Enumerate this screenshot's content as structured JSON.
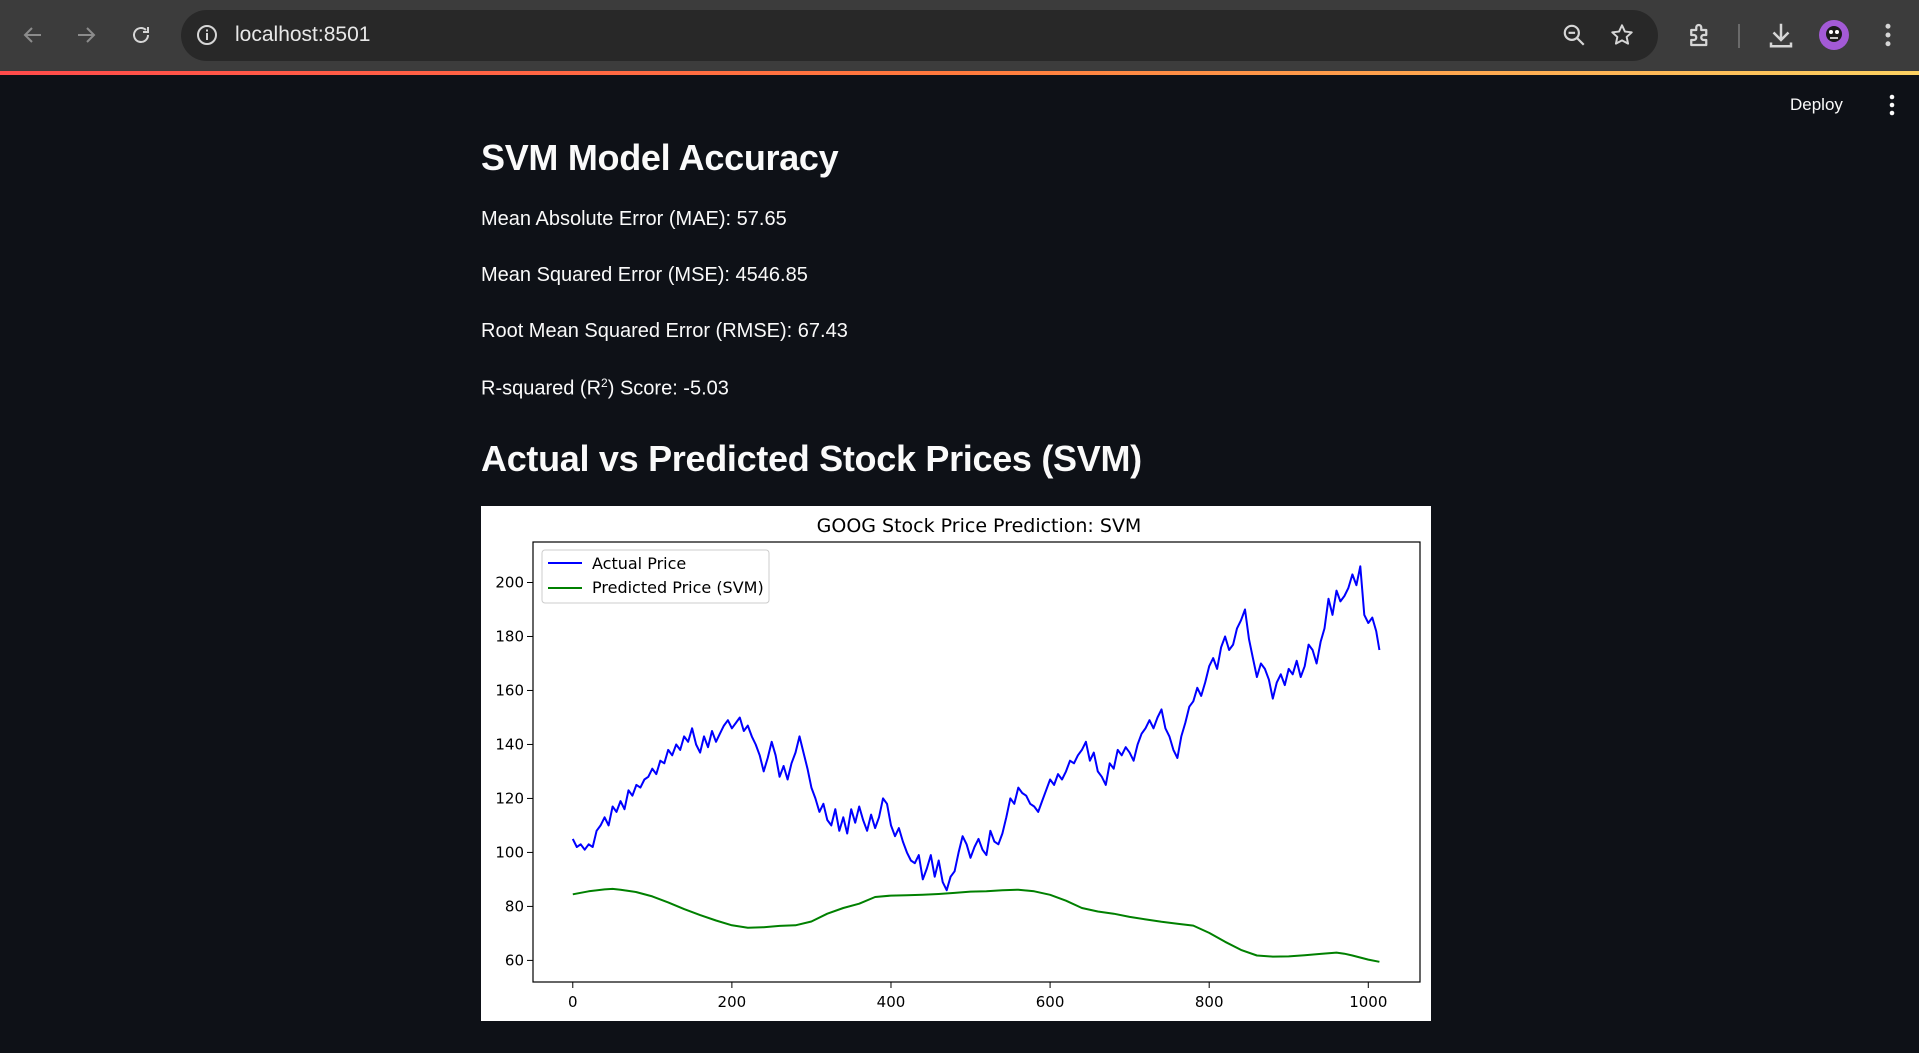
{
  "browser": {
    "url": "localhost:8501",
    "icons": [
      "back-arrow-icon",
      "forward-arrow-icon",
      "reload-icon",
      "info-icon",
      "zoom-icon",
      "star-icon",
      "extensions-icon",
      "download-icon",
      "profile-avatar",
      "kebab-menu-icon"
    ]
  },
  "app_header": {
    "deploy_label": "Deploy"
  },
  "accuracy": {
    "heading": "SVM Model Accuracy",
    "mae": "Mean Absolute Error (MAE): 57.65",
    "mse": "Mean Squared Error (MSE): 4546.85",
    "rmse": "Root Mean Squared Error (RMSE): 67.43",
    "r2_prefix": "R-squared (R",
    "r2_sup": "2",
    "r2_suffix": ") Score: -5.03"
  },
  "chart_section": {
    "heading": "Actual vs Predicted Stock Prices (SVM)"
  },
  "chart_data": {
    "type": "line",
    "title": "GOOG Stock Price Prediction: SVM",
    "xlabel": "",
    "ylabel": "",
    "xlim": [
      -50,
      1065
    ],
    "ylim": [
      52,
      215
    ],
    "xticks": [
      0,
      200,
      400,
      600,
      800,
      1000
    ],
    "yticks": [
      60,
      80,
      100,
      120,
      140,
      160,
      180,
      200
    ],
    "legend_position": "top-left",
    "grid": false,
    "series": [
      {
        "name": "Actual Price",
        "color": "#0000ff",
        "x": [
          0,
          5,
          10,
          15,
          20,
          25,
          30,
          35,
          40,
          45,
          50,
          55,
          60,
          65,
          70,
          75,
          80,
          85,
          90,
          95,
          100,
          105,
          110,
          115,
          120,
          125,
          130,
          135,
          140,
          145,
          150,
          155,
          160,
          165,
          170,
          175,
          180,
          185,
          190,
          195,
          200,
          205,
          210,
          215,
          220,
          225,
          230,
          235,
          240,
          245,
          250,
          255,
          260,
          265,
          270,
          275,
          280,
          285,
          290,
          295,
          300,
          305,
          310,
          315,
          320,
          325,
          330,
          335,
          340,
          345,
          350,
          355,
          360,
          365,
          370,
          375,
          380,
          385,
          390,
          395,
          400,
          405,
          410,
          415,
          420,
          425,
          430,
          435,
          440,
          445,
          450,
          455,
          460,
          465,
          470,
          475,
          480,
          485,
          490,
          495,
          500,
          505,
          510,
          515,
          520,
          525,
          530,
          535,
          540,
          545,
          550,
          555,
          560,
          565,
          570,
          575,
          580,
          585,
          590,
          595,
          600,
          605,
          610,
          615,
          620,
          625,
          630,
          635,
          640,
          645,
          650,
          655,
          660,
          665,
          670,
          675,
          680,
          685,
          690,
          695,
          700,
          705,
          710,
          715,
          720,
          725,
          730,
          735,
          740,
          745,
          750,
          755,
          760,
          765,
          770,
          775,
          780,
          785,
          790,
          795,
          800,
          805,
          810,
          815,
          820,
          825,
          830,
          835,
          840,
          845,
          850,
          855,
          860,
          865,
          870,
          875,
          880,
          885,
          890,
          895,
          900,
          905,
          910,
          915,
          920,
          925,
          930,
          935,
          940,
          945,
          950,
          955,
          960,
          965,
          970,
          975,
          980,
          985,
          990,
          995,
          1000,
          1005,
          1010,
          1014
        ],
        "y": [
          105,
          102,
          103,
          101,
          103,
          102,
          108,
          110,
          113,
          110,
          117,
          115,
          119,
          116,
          123,
          121,
          125,
          124,
          127,
          128,
          131,
          129,
          134,
          133,
          138,
          136,
          140,
          138,
          143,
          141,
          146,
          140,
          137,
          143,
          139,
          145,
          141,
          144,
          147,
          149,
          146,
          148,
          150,
          145,
          147,
          143,
          140,
          136,
          130,
          135,
          141,
          136,
          128,
          132,
          127,
          133,
          137,
          143,
          137,
          131,
          124,
          120,
          115,
          118,
          112,
          110,
          116,
          108,
          113,
          107,
          116,
          111,
          117,
          112,
          108,
          114,
          109,
          113,
          120,
          118,
          110,
          106,
          109,
          104,
          100,
          97,
          96,
          99,
          90,
          94,
          99,
          91,
          97,
          89,
          86,
          91,
          93,
          100,
          106,
          103,
          98,
          102,
          105,
          101,
          99,
          108,
          104,
          103,
          107,
          113,
          120,
          118,
          124,
          122,
          121,
          118,
          117,
          115,
          119,
          123,
          127,
          125,
          129,
          127,
          130,
          134,
          133,
          136,
          138,
          141,
          134,
          137,
          130,
          128,
          125,
          133,
          131,
          138,
          136,
          139,
          137,
          134,
          140,
          144,
          146,
          149,
          146,
          150,
          153,
          146,
          143,
          138,
          135,
          143,
          148,
          154,
          156,
          161,
          158,
          163,
          169,
          172,
          168,
          176,
          180,
          175,
          177,
          183,
          186,
          190,
          179,
          172,
          165,
          170,
          168,
          164,
          157,
          163,
          166,
          162,
          168,
          166,
          171,
          165,
          169,
          177,
          175,
          170,
          178,
          183,
          194,
          188,
          197,
          193,
          195,
          198,
          203,
          199,
          206,
          188,
          185,
          187,
          182,
          175
        ]
      },
      {
        "name": "Predicted Price (SVM)",
        "color": "#008000",
        "x": [
          0,
          20,
          40,
          50,
          60,
          80,
          100,
          120,
          140,
          160,
          180,
          200,
          220,
          240,
          260,
          280,
          300,
          320,
          340,
          360,
          380,
          400,
          420,
          440,
          460,
          480,
          500,
          520,
          540,
          560,
          580,
          600,
          620,
          640,
          660,
          680,
          700,
          720,
          740,
          760,
          780,
          800,
          820,
          840,
          860,
          880,
          900,
          920,
          940,
          960,
          970,
          980,
          1000,
          1014
        ],
        "y": [
          84.5,
          85.6,
          86.3,
          86.5,
          86.2,
          85.3,
          83.7,
          81.5,
          79.0,
          76.8,
          74.8,
          73.0,
          72.1,
          72.3,
          72.8,
          73.0,
          74.4,
          77.3,
          79.4,
          81.0,
          83.5,
          84.0,
          84.1,
          84.3,
          84.6,
          85.0,
          85.5,
          85.6,
          86.0,
          86.2,
          85.6,
          84.3,
          82.1,
          79.4,
          78.1,
          77.3,
          76.1,
          75.2,
          74.3,
          73.6,
          72.9,
          70.2,
          66.9,
          63.9,
          61.8,
          61.4,
          61.5,
          61.9,
          62.4,
          62.9,
          62.5,
          61.8,
          60.3,
          59.5
        ]
      }
    ]
  }
}
